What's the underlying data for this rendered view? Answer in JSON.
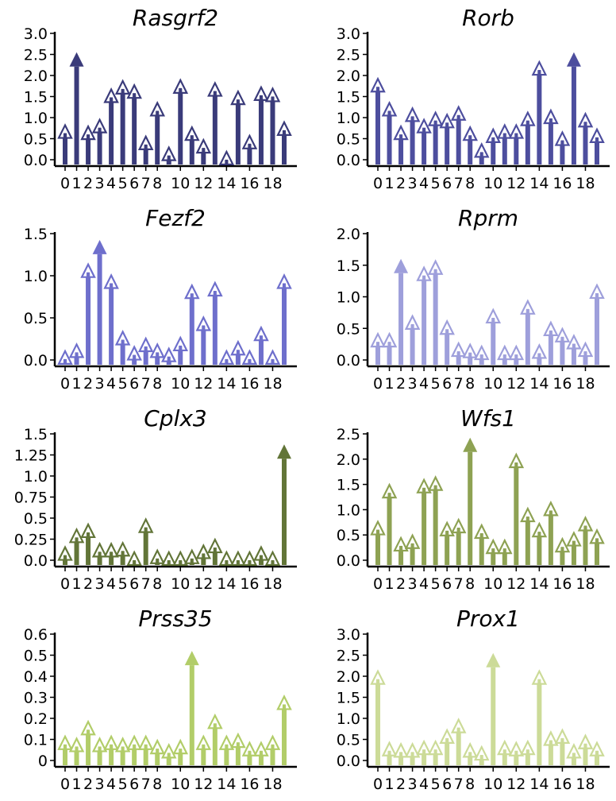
{
  "chart_data": [
    {
      "type": "bar",
      "title": "Rasgrf2",
      "color": "#3a3b7a",
      "ylim": [
        0,
        3.0
      ],
      "yticks": [
        "0.0",
        "0.5",
        "1.0",
        "1.5",
        "2.0",
        "2.5",
        "3.0"
      ],
      "xtick_labels": [
        "0",
        "1",
        "2",
        "3",
        "4",
        "5",
        "6",
        "7",
        "8",
        "10",
        "12",
        "14",
        "16",
        "18"
      ],
      "x": [
        0,
        1,
        2,
        3,
        4,
        5,
        6,
        7,
        8,
        9,
        10,
        11,
        12,
        13,
        14,
        15,
        16,
        17,
        18,
        19
      ],
      "values": [
        0.65,
        2.4,
        0.62,
        0.78,
        1.5,
        1.7,
        1.6,
        0.38,
        1.18,
        0.12,
        1.72,
        0.6,
        0.3,
        1.65,
        0.02,
        1.45,
        0.4,
        1.55,
        1.52,
        0.72
      ],
      "truncated": [
        1
      ]
    },
    {
      "type": "bar",
      "title": "Rorb",
      "color": "#4d4e9e",
      "ylim": [
        0,
        3.0
      ],
      "yticks": [
        "0.0",
        "0.5",
        "1.0",
        "1.5",
        "2.0",
        "2.5",
        "3.0"
      ],
      "xtick_labels": [
        "0",
        "1",
        "2",
        "3",
        "4",
        "5",
        "6",
        "7",
        "8",
        "10",
        "12",
        "14",
        "16",
        "18"
      ],
      "x": [
        0,
        1,
        2,
        3,
        4,
        5,
        6,
        7,
        8,
        9,
        10,
        11,
        12,
        13,
        14,
        15,
        16,
        17,
        18,
        19
      ],
      "values": [
        1.75,
        1.18,
        0.62,
        1.05,
        0.78,
        0.95,
        0.9,
        1.08,
        0.6,
        0.2,
        0.55,
        0.65,
        0.65,
        0.95,
        2.15,
        1.0,
        0.48,
        2.4,
        0.92,
        0.55
      ],
      "truncated": [
        17
      ]
    },
    {
      "type": "bar",
      "title": "Fezf2",
      "color": "#6e6fcc",
      "ylim": [
        0,
        1.5
      ],
      "yticks": [
        "0.0",
        "0.5",
        "1.0",
        "1.5"
      ],
      "xtick_labels": [
        "0",
        "1",
        "2",
        "3",
        "4",
        "5",
        "6",
        "7",
        "8",
        "10",
        "12",
        "14",
        "16",
        "18"
      ],
      "x": [
        0,
        1,
        2,
        3,
        4,
        5,
        6,
        7,
        8,
        9,
        10,
        11,
        12,
        13,
        14,
        15,
        16,
        17,
        18,
        19
      ],
      "values": [
        0.02,
        0.1,
        1.05,
        1.35,
        0.92,
        0.25,
        0.07,
        0.17,
        0.1,
        0.05,
        0.18,
        0.8,
        0.42,
        0.83,
        0.02,
        0.13,
        0.02,
        0.3,
        0.02,
        0.92
      ],
      "truncated": [
        3
      ]
    },
    {
      "type": "bar",
      "title": "Rprm",
      "color": "#9e9fdb",
      "ylim": [
        0,
        2.0
      ],
      "yticks": [
        "0.0",
        "0.5",
        "1.0",
        "1.5",
        "2.0"
      ],
      "xtick_labels": [
        "0",
        "1",
        "2",
        "3",
        "4",
        "5",
        "6",
        "7",
        "8",
        "10",
        "12",
        "14",
        "16",
        "18"
      ],
      "x": [
        0,
        1,
        2,
        3,
        4,
        5,
        6,
        7,
        8,
        9,
        10,
        11,
        12,
        13,
        14,
        15,
        16,
        17,
        18,
        19
      ],
      "values": [
        0.3,
        0.3,
        1.5,
        0.58,
        1.35,
        1.45,
        0.5,
        0.15,
        0.13,
        0.1,
        0.68,
        0.1,
        0.1,
        0.82,
        0.12,
        0.48,
        0.38,
        0.27,
        0.15,
        1.07
      ],
      "truncated": [
        2
      ]
    },
    {
      "type": "bar",
      "title": "Cplx3",
      "color": "#627538",
      "ylim": [
        0,
        1.5
      ],
      "yticks": [
        "0.0",
        "0.25",
        "0.5",
        "0.75",
        "1.0",
        "1.25",
        "1.5"
      ],
      "xtick_labels": [
        "0",
        "1",
        "2",
        "3",
        "4",
        "5",
        "6",
        "7",
        "8",
        "10",
        "12",
        "14",
        "16",
        "18"
      ],
      "x": [
        0,
        1,
        2,
        3,
        4,
        5,
        6,
        7,
        8,
        9,
        10,
        11,
        12,
        13,
        14,
        15,
        16,
        17,
        18,
        19
      ],
      "values": [
        0.07,
        0.28,
        0.34,
        0.11,
        0.11,
        0.12,
        0.01,
        0.4,
        0.03,
        0.01,
        0.01,
        0.03,
        0.09,
        0.16,
        0.01,
        0.01,
        0.01,
        0.07,
        0.01,
        1.3
      ],
      "truncated": [
        19
      ]
    },
    {
      "type": "bar",
      "title": "Wfs1",
      "color": "#8ea253",
      "ylim": [
        0,
        2.5
      ],
      "yticks": [
        "0.0",
        "0.5",
        "1.0",
        "1.5",
        "2.0",
        "2.5"
      ],
      "xtick_labels": [
        "0",
        "1",
        "2",
        "3",
        "4",
        "5",
        "6",
        "7",
        "8",
        "10",
        "12",
        "14",
        "16",
        "18"
      ],
      "x": [
        0,
        1,
        2,
        3,
        4,
        5,
        6,
        7,
        8,
        9,
        10,
        11,
        12,
        13,
        14,
        15,
        16,
        17,
        18,
        19
      ],
      "values": [
        0.62,
        1.35,
        0.3,
        0.35,
        1.45,
        1.5,
        0.6,
        0.66,
        2.3,
        0.55,
        0.25,
        0.25,
        1.95,
        0.88,
        0.58,
        1.0,
        0.28,
        0.4,
        0.7,
        0.45
      ],
      "truncated": [
        8
      ]
    },
    {
      "type": "bar",
      "title": "Prss35",
      "color": "#b2cd69",
      "ylim": [
        0,
        0.6
      ],
      "yticks": [
        "0",
        "0.1",
        "0.2",
        "0.3",
        "0.4",
        "0.5",
        "0.6"
      ],
      "xtick_labels": [
        "0",
        "1",
        "2",
        "3",
        "4",
        "5",
        "6",
        "7",
        "8",
        "10",
        "12",
        "14",
        "16",
        "18"
      ],
      "x": [
        0,
        1,
        2,
        3,
        4,
        5,
        6,
        7,
        8,
        9,
        10,
        11,
        12,
        13,
        14,
        15,
        16,
        17,
        18,
        19
      ],
      "values": [
        0.08,
        0.07,
        0.15,
        0.07,
        0.08,
        0.07,
        0.08,
        0.08,
        0.06,
        0.04,
        0.06,
        0.49,
        0.08,
        0.18,
        0.08,
        0.09,
        0.05,
        0.05,
        0.08,
        0.27
      ],
      "truncated": [
        11
      ]
    },
    {
      "type": "bar",
      "title": "Prox1",
      "color": "#ccdb98",
      "ylim": [
        0,
        3.0
      ],
      "yticks": [
        "0.0",
        "0.5",
        "1.0",
        "1.5",
        "2.0",
        "2.5",
        "3.0"
      ],
      "xtick_labels": [
        "0",
        "1",
        "2",
        "3",
        "4",
        "5",
        "6",
        "7",
        "8",
        "10",
        "12",
        "14",
        "16",
        "18"
      ],
      "x": [
        0,
        1,
        2,
        3,
        4,
        5,
        6,
        7,
        8,
        9,
        10,
        11,
        12,
        13,
        14,
        15,
        16,
        17,
        18,
        19
      ],
      "values": [
        1.95,
        0.25,
        0.22,
        0.22,
        0.28,
        0.28,
        0.55,
        0.8,
        0.22,
        0.15,
        2.4,
        0.28,
        0.25,
        0.28,
        1.95,
        0.5,
        0.55,
        0.2,
        0.42,
        0.25
      ],
      "truncated": [
        10
      ]
    }
  ]
}
